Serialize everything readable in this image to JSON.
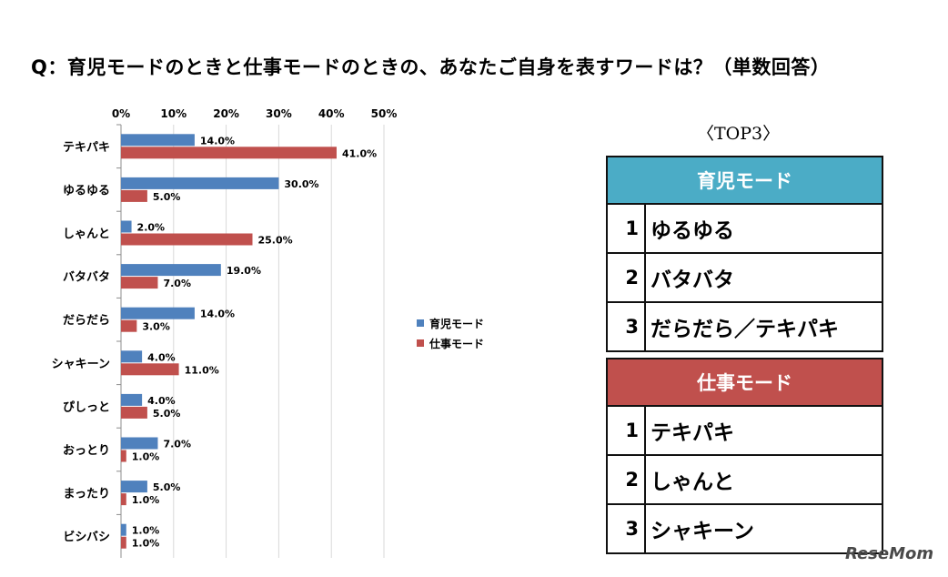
{
  "question": "Q：育児モードのときと仕事モードのときの、あなたご自身を表すワードは？（単数回答）",
  "chart_data": {
    "type": "bar",
    "orientation": "horizontal",
    "categories": [
      "テキパキ",
      "ゆるゆる",
      "しゃんと",
      "バタバタ",
      "だらだら",
      "シャキーン",
      "ぴしっと",
      "おっとり",
      "まったり",
      "ビシバシ"
    ],
    "series": [
      {
        "name": "育児モード",
        "color": "#4F81BD",
        "values": [
          14.0,
          30.0,
          2.0,
          19.0,
          14.0,
          4.0,
          4.0,
          7.0,
          5.0,
          1.0
        ],
        "labels": [
          "14.0%",
          "30.0%",
          "2.0%",
          "19.0%",
          "14.0%",
          "4.0%",
          "4.0%",
          "7.0%",
          "5.0%",
          "1.0%"
        ]
      },
      {
        "name": "仕事モード",
        "color": "#C0504D",
        "values": [
          41.0,
          5.0,
          25.0,
          7.0,
          3.0,
          11.0,
          5.0,
          1.0,
          1.0,
          1.0
        ],
        "labels": [
          "41.0%",
          "5.0%",
          "25.0%",
          "7.0%",
          "3.0%",
          "11.0%",
          "5.0%",
          "1.0%",
          "1.0%",
          "1.0%"
        ]
      }
    ],
    "xlim": [
      0,
      50
    ],
    "x_ticks": [
      "0%",
      "10%",
      "20%",
      "30%",
      "40%",
      "50%"
    ],
    "grid": true,
    "legend_position": "right"
  },
  "top3": {
    "title": "〈TOP3〉",
    "tables": [
      {
        "header": "育児モード",
        "header_color": "#4BACC6",
        "ranks": [
          {
            "num": "1",
            "word": "ゆるゆる"
          },
          {
            "num": "2",
            "word": "バタバタ"
          },
          {
            "num": "3",
            "word": "だらだら／テキパキ"
          }
        ]
      },
      {
        "header": "仕事モード",
        "header_color": "#C0504D",
        "ranks": [
          {
            "num": "1",
            "word": "テキパキ"
          },
          {
            "num": "2",
            "word": "しゃんと"
          },
          {
            "num": "3",
            "word": "シャキーン"
          }
        ]
      }
    ]
  },
  "watermark": "ReseMom"
}
